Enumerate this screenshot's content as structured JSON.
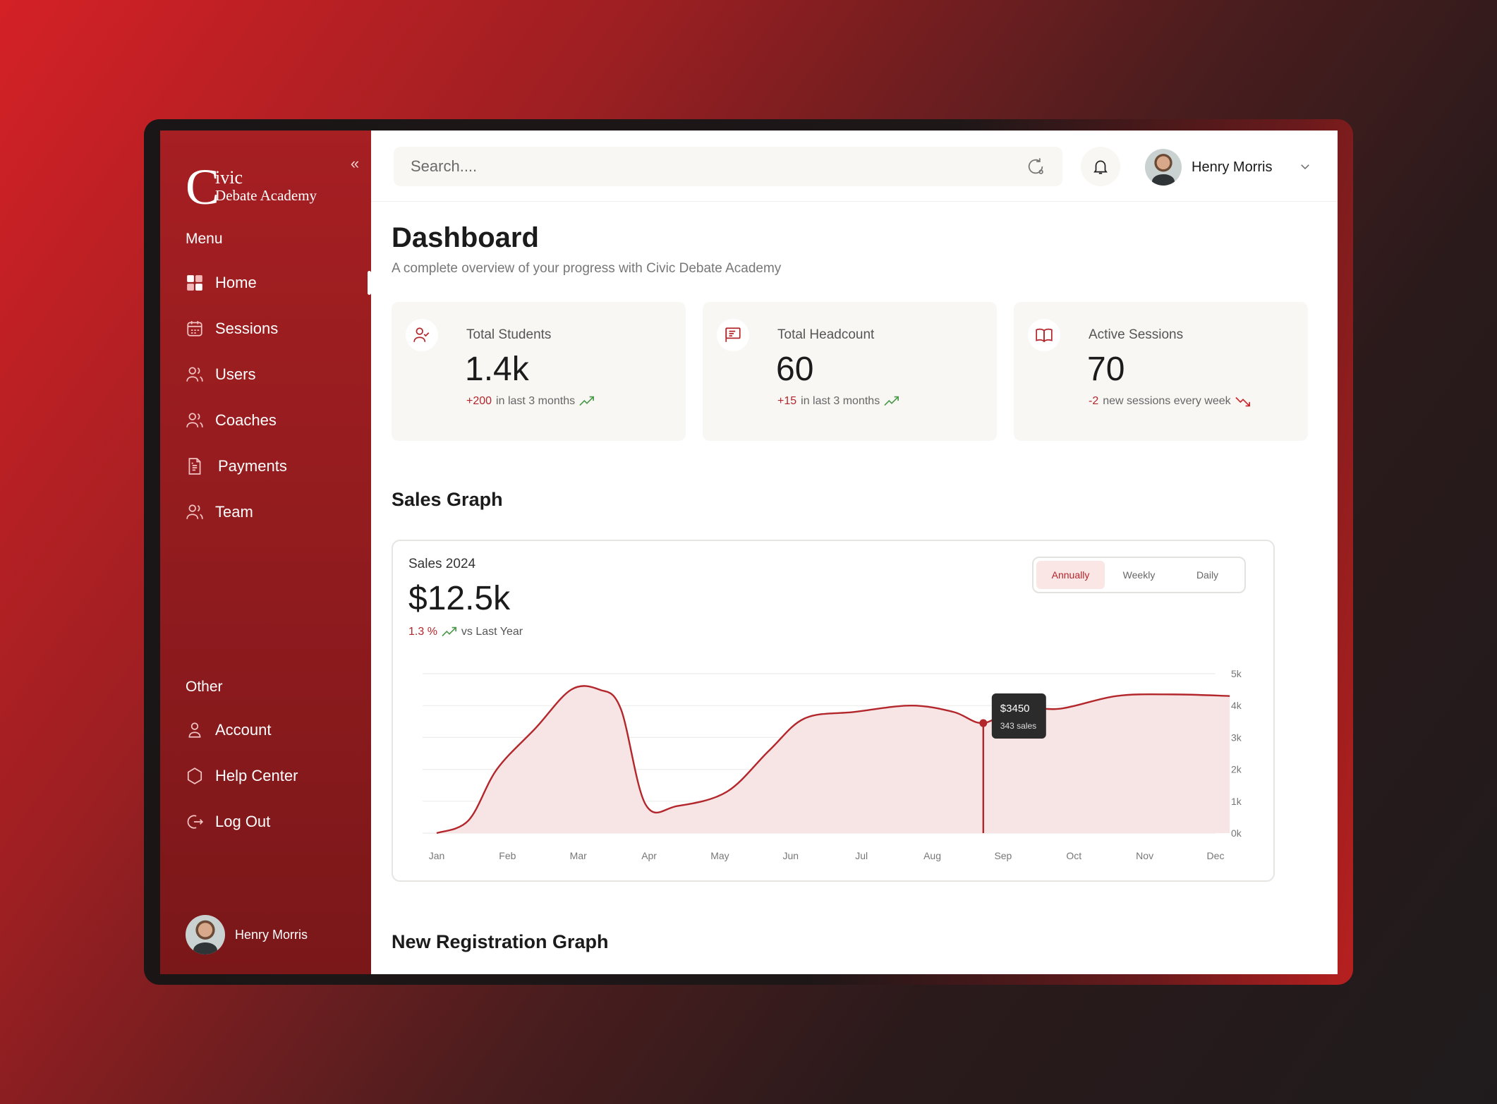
{
  "brand": {
    "logo_letter": "C",
    "line1": "ivic",
    "line2": "Debate Academy"
  },
  "sidebar": {
    "collapse_label": "«",
    "menu_label": "Menu",
    "menu_items": [
      {
        "label": "Home",
        "icon": "grid-icon"
      },
      {
        "label": "Sessions",
        "icon": "calendar-icon"
      },
      {
        "label": "Users",
        "icon": "users-icon"
      },
      {
        "label": "Coaches",
        "icon": "users-icon"
      },
      {
        "label": "Payments",
        "icon": "document-icon"
      },
      {
        "label": "Team",
        "icon": "users-icon"
      }
    ],
    "other_label": "Other",
    "other_items": [
      {
        "label": "Account",
        "icon": "user-icon"
      },
      {
        "label": "Help Center",
        "icon": "hexagon-icon"
      },
      {
        "label": "Log Out",
        "icon": "logout-icon"
      }
    ],
    "user_name": "Henry Morris"
  },
  "topbar": {
    "search_placeholder": "Search....",
    "user_name": "Henry Morris"
  },
  "page": {
    "title": "Dashboard",
    "subtitle": "A complete overview of your progress with Civic Debate Academy"
  },
  "stats": [
    {
      "label": "Total Students",
      "value": "1.4k",
      "delta": "+200",
      "trend_text": "in last 3 months",
      "direction": "up",
      "icon": "user-check-icon"
    },
    {
      "label": "Total Headcount",
      "value": "60",
      "delta": "+15",
      "trend_text": "in last 3 months",
      "direction": "up",
      "icon": "presentation-icon"
    },
    {
      "label": "Active Sessions",
      "value": "70",
      "delta": "-2",
      "trend_text": "new sessions every week",
      "direction": "down",
      "icon": "book-open-icon"
    }
  ],
  "sales": {
    "section_title": "Sales Graph",
    "label": "Sales 2024",
    "value": "$12.5k",
    "pct": "1.3 %",
    "vs_text": "vs Last Year",
    "tabs": [
      "Annually",
      "Weekly",
      "Daily"
    ],
    "active_tab": "Annually"
  },
  "registration": {
    "section_title": "New Registration Graph"
  },
  "colors": {
    "accent": "#b3262b",
    "sidebar": "#9a1d20",
    "up": "#4a9a4a",
    "area": "#f6e5e4"
  },
  "chart_data": {
    "type": "area",
    "title": "Sales 2024",
    "x": [
      "Jan",
      "Feb",
      "Mar",
      "Apr",
      "May",
      "Jun",
      "Jul",
      "Aug",
      "Sep",
      "Oct",
      "Nov",
      "Dec"
    ],
    "yticks": [
      "0k",
      "1k",
      "2k",
      "3k",
      "4k",
      "5k"
    ],
    "ylim": [
      0,
      5000
    ],
    "points": [
      {
        "x": 0.0,
        "y": 0
      },
      {
        "x": 0.45,
        "y": 400
      },
      {
        "x": 0.85,
        "y": 2000
      },
      {
        "x": 1.4,
        "y": 3300
      },
      {
        "x": 1.9,
        "y": 4500
      },
      {
        "x": 2.3,
        "y": 4500
      },
      {
        "x": 2.6,
        "y": 3900
      },
      {
        "x": 2.95,
        "y": 900
      },
      {
        "x": 3.4,
        "y": 850
      },
      {
        "x": 4.1,
        "y": 1300
      },
      {
        "x": 4.7,
        "y": 2600
      },
      {
        "x": 5.2,
        "y": 3600
      },
      {
        "x": 5.9,
        "y": 3800
      },
      {
        "x": 6.7,
        "y": 4000
      },
      {
        "x": 7.3,
        "y": 3800
      },
      {
        "x": 7.72,
        "y": 3450
      },
      {
        "x": 8.2,
        "y": 3950
      },
      {
        "x": 8.8,
        "y": 3900
      },
      {
        "x": 9.6,
        "y": 4300
      },
      {
        "x": 10.4,
        "y": 4350
      },
      {
        "x": 11.2,
        "y": 4300
      }
    ],
    "tooltip": {
      "x": 7.72,
      "y": 3450,
      "value": "$3450",
      "detail": "343 sales"
    },
    "grid": true,
    "yaxis_position": "right"
  }
}
